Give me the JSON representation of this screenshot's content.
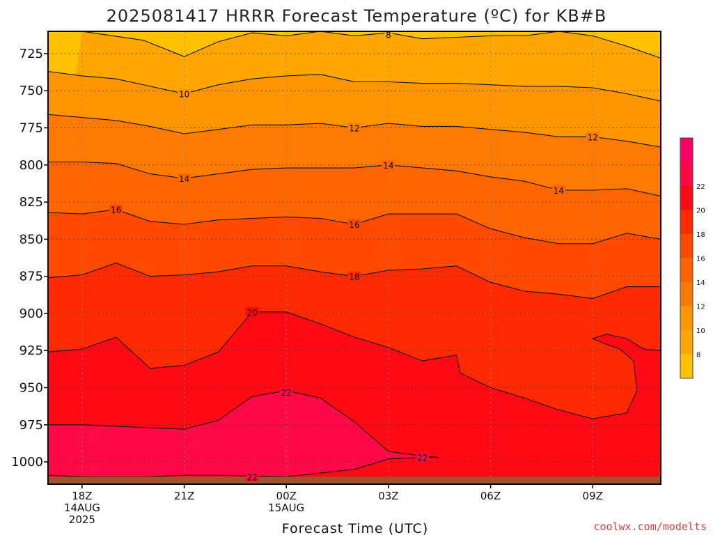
{
  "title": "2025081417 HRRR Forecast Temperature (ºC) for KB#B",
  "credit": "coolwx.com/modelts",
  "chart_data": {
    "type": "contour",
    "xlabel": "Forecast Time (UTC)",
    "ylabel": "",
    "y_axis": {
      "quantity": "pressure (hPa)",
      "range": [
        1015,
        710
      ],
      "ticks": [
        725,
        750,
        775,
        800,
        825,
        850,
        875,
        900,
        925,
        950,
        975,
        1000
      ]
    },
    "x_axis": {
      "range_hours": [
        17,
        35
      ],
      "ticks": [
        {
          "hour": 18,
          "lines": [
            "18Z",
            "14AUG",
            "2025"
          ]
        },
        {
          "hour": 21,
          "lines": [
            "21Z"
          ]
        },
        {
          "hour": 24,
          "lines": [
            "00Z",
            "15AUG"
          ]
        },
        {
          "hour": 27,
          "lines": [
            "03Z"
          ]
        },
        {
          "hour": 30,
          "lines": [
            "06Z"
          ]
        },
        {
          "hour": 33,
          "lines": [
            "09Z"
          ]
        }
      ]
    },
    "grid": true,
    "ground_level_hpa": 1010,
    "ground_color": "#a0522d",
    "colorbar": {
      "position": "right",
      "levels": [
        6,
        8,
        10,
        12,
        14,
        16,
        18,
        20,
        22,
        24
      ],
      "colors": [
        "#ffc200",
        "#ffa600",
        "#ff9500",
        "#ff7a00",
        "#ff6600",
        "#ff4a00",
        "#ff2a00",
        "#ff0a14",
        "#ff0a46",
        "#ff0066"
      ],
      "labels": [
        "8",
        "10",
        "12",
        "14",
        "16",
        "18",
        "20",
        "22"
      ]
    },
    "contours": [
      {
        "value": 8,
        "label": "8",
        "label_points": [
          [
            27.0,
            712
          ]
        ],
        "points": [
          [
            18.0,
            710
          ],
          [
            19.8,
            716
          ],
          [
            21.0,
            727
          ],
          [
            22.0,
            717
          ],
          [
            23.0,
            711
          ],
          [
            24.0,
            713
          ],
          [
            25.0,
            710
          ],
          [
            26.0,
            713
          ],
          [
            27.0,
            711
          ],
          [
            28.0,
            715
          ],
          [
            29.0,
            714
          ],
          [
            30.0,
            713
          ],
          [
            31.0,
            713
          ],
          [
            32.0,
            710
          ],
          [
            33.0,
            713
          ],
          [
            34.0,
            720
          ],
          [
            35.0,
            728
          ]
        ]
      },
      {
        "value": 10,
        "label": "10",
        "label_points": [
          [
            21.0,
            752
          ]
        ],
        "points": [
          [
            17.0,
            737
          ],
          [
            18.0,
            740
          ],
          [
            19.0,
            742
          ],
          [
            20.0,
            747
          ],
          [
            21.0,
            752
          ],
          [
            22.0,
            746
          ],
          [
            23.0,
            742
          ],
          [
            24.0,
            740
          ],
          [
            25.0,
            739
          ],
          [
            26.0,
            744
          ],
          [
            27.0,
            744
          ],
          [
            28.0,
            745
          ],
          [
            29.0,
            745
          ],
          [
            30.0,
            746
          ],
          [
            31.0,
            747
          ],
          [
            32.0,
            747
          ],
          [
            33.0,
            748
          ],
          [
            34.0,
            752
          ],
          [
            35.0,
            757
          ]
        ]
      },
      {
        "value": 12,
        "label": "12",
        "label_points": [
          [
            26.0,
            775
          ],
          [
            33.0,
            781
          ]
        ],
        "points": [
          [
            17.0,
            766
          ],
          [
            18.0,
            768
          ],
          [
            19.0,
            770
          ],
          [
            20.0,
            774
          ],
          [
            21.0,
            779
          ],
          [
            22.0,
            776
          ],
          [
            23.0,
            773
          ],
          [
            24.0,
            773
          ],
          [
            25.0,
            772
          ],
          [
            26.0,
            775
          ],
          [
            27.0,
            772
          ],
          [
            28.0,
            774
          ],
          [
            29.0,
            774
          ],
          [
            30.0,
            776
          ],
          [
            31.0,
            778
          ],
          [
            32.0,
            781
          ],
          [
            33.0,
            781
          ],
          [
            34.0,
            784
          ],
          [
            35.0,
            788
          ]
        ]
      },
      {
        "value": 14,
        "label": "14",
        "label_points": [
          [
            21.0,
            809
          ],
          [
            27.0,
            800
          ],
          [
            32.0,
            817
          ]
        ],
        "points": [
          [
            17.0,
            798
          ],
          [
            18.0,
            798
          ],
          [
            19.0,
            799
          ],
          [
            20.0,
            806
          ],
          [
            21.0,
            809
          ],
          [
            22.0,
            806
          ],
          [
            23.0,
            803
          ],
          [
            24.0,
            802
          ],
          [
            25.0,
            802
          ],
          [
            26.0,
            802
          ],
          [
            27.0,
            800
          ],
          [
            28.0,
            802
          ],
          [
            29.0,
            804
          ],
          [
            30.0,
            808
          ],
          [
            31.0,
            811
          ],
          [
            32.0,
            817
          ],
          [
            33.0,
            817
          ],
          [
            34.0,
            816
          ],
          [
            35.0,
            821
          ]
        ]
      },
      {
        "value": 16,
        "label": "16",
        "label_points": [
          [
            19.0,
            830
          ],
          [
            26.0,
            840
          ]
        ],
        "points": [
          [
            17.0,
            832
          ],
          [
            18.0,
            833
          ],
          [
            19.0,
            830
          ],
          [
            20.0,
            838
          ],
          [
            21.0,
            840
          ],
          [
            22.0,
            837
          ],
          [
            23.0,
            836
          ],
          [
            24.0,
            835
          ],
          [
            25.0,
            836
          ],
          [
            26.0,
            840
          ],
          [
            27.0,
            833
          ],
          [
            28.0,
            833
          ],
          [
            29.0,
            833
          ],
          [
            30.0,
            843
          ],
          [
            31.0,
            849
          ],
          [
            32.0,
            853
          ],
          [
            33.0,
            853
          ],
          [
            34.0,
            846
          ],
          [
            35.0,
            850
          ]
        ]
      },
      {
        "value": 18,
        "label": "18",
        "label_points": [
          [
            26.0,
            875
          ]
        ],
        "points": [
          [
            17.0,
            876
          ],
          [
            18.0,
            874
          ],
          [
            19.0,
            866
          ],
          [
            20.0,
            875
          ],
          [
            21.0,
            874
          ],
          [
            22.0,
            872
          ],
          [
            23.0,
            868
          ],
          [
            24.0,
            868
          ],
          [
            25.0,
            872
          ],
          [
            26.0,
            875
          ],
          [
            27.0,
            871
          ],
          [
            28.0,
            870
          ],
          [
            29.0,
            868
          ],
          [
            30.0,
            879
          ],
          [
            31.0,
            885
          ],
          [
            32.0,
            887
          ],
          [
            33.0,
            890
          ],
          [
            34.0,
            882
          ],
          [
            35.0,
            882
          ]
        ]
      },
      {
        "value": 20,
        "label": "20",
        "label_points": [
          [
            23.0,
            899
          ]
        ],
        "points": [
          [
            17.0,
            926
          ],
          [
            18.0,
            924
          ],
          [
            19.0,
            916
          ],
          [
            20.0,
            937
          ],
          [
            21.0,
            935
          ],
          [
            22.0,
            926
          ],
          [
            23.0,
            899
          ],
          [
            24.0,
            899
          ],
          [
            25.0,
            907
          ],
          [
            26.0,
            916
          ],
          [
            27.0,
            923
          ],
          [
            28.0,
            932
          ],
          [
            29.0,
            928
          ],
          [
            29.1,
            940
          ],
          [
            30.0,
            950
          ],
          [
            31.0,
            957
          ],
          [
            32.0,
            965
          ],
          [
            33.0,
            971
          ],
          [
            34.0,
            967
          ],
          [
            34.3,
            952
          ],
          [
            34.2,
            932
          ],
          [
            33.8,
            924
          ],
          [
            33.3,
            920
          ],
          [
            33.0,
            917
          ],
          [
            33.4,
            914
          ],
          [
            34.0,
            917
          ],
          [
            34.5,
            924
          ],
          [
            35.0,
            925
          ]
        ]
      },
      {
        "value": 22,
        "label": "22",
        "label_points": [
          [
            24.0,
            953
          ],
          [
            28.0,
            997
          ],
          [
            23.0,
            1010
          ]
        ],
        "points": [
          [
            17.0,
            975
          ],
          [
            18.0,
            975
          ],
          [
            19.0,
            976
          ],
          [
            20.0,
            977
          ],
          [
            21.0,
            978
          ],
          [
            22.0,
            972
          ],
          [
            23.0,
            956
          ],
          [
            24.0,
            952
          ],
          [
            25.0,
            957
          ],
          [
            26.0,
            973
          ],
          [
            27.0,
            993
          ],
          [
            28.0,
            996
          ],
          [
            28.5,
            997
          ],
          [
            28.0,
            997
          ],
          [
            27.0,
            998
          ],
          [
            26.0,
            1005
          ],
          [
            24.0,
            1010
          ],
          [
            22.0,
            1009
          ],
          [
            21.0,
            1009
          ],
          [
            20.0,
            1010
          ],
          [
            19.0,
            1010
          ],
          [
            18.0,
            1010
          ],
          [
            17.0,
            1009
          ]
        ]
      }
    ]
  }
}
